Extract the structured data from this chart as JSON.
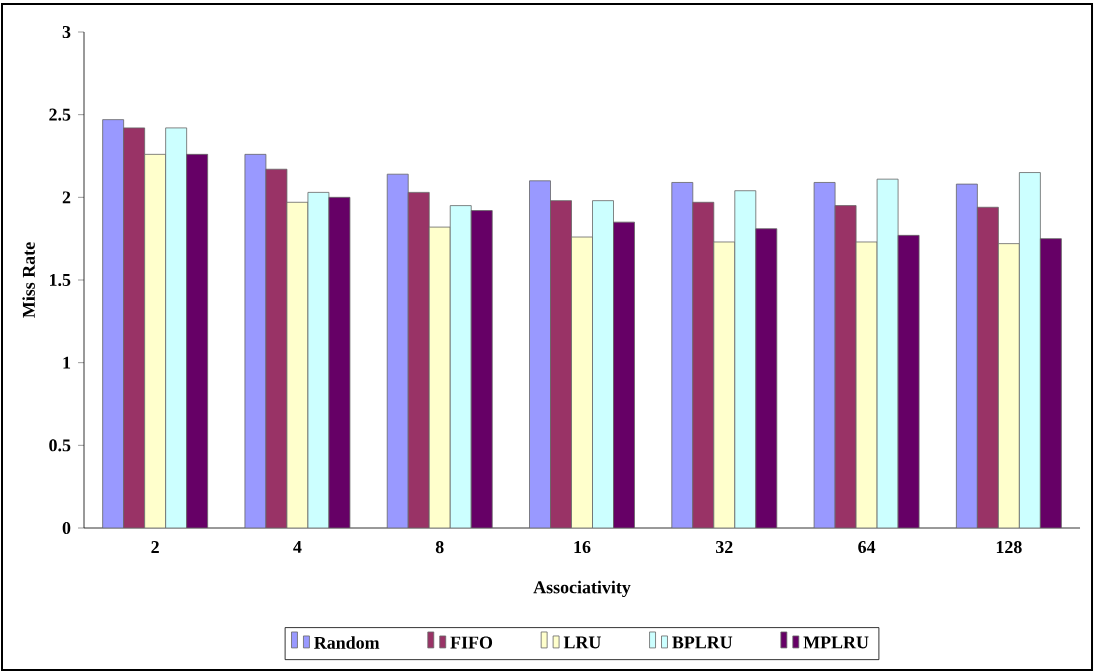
{
  "chart_data": {
    "type": "bar",
    "xlabel": "Associativity",
    "ylabel": "Miss Rate",
    "categories": [
      "2",
      "4",
      "8",
      "16",
      "32",
      "64",
      "128"
    ],
    "series": [
      {
        "name": "Random",
        "color": "#9999ff",
        "values": [
          2.47,
          2.26,
          2.14,
          2.1,
          2.09,
          2.09,
          2.08
        ]
      },
      {
        "name": "FIFO",
        "color": "#993366",
        "values": [
          2.42,
          2.17,
          2.03,
          1.98,
          1.97,
          1.95,
          1.94
        ]
      },
      {
        "name": "LRU",
        "color": "#ffffcc",
        "values": [
          2.26,
          1.97,
          1.82,
          1.76,
          1.73,
          1.73,
          1.72
        ]
      },
      {
        "name": "BPLRU",
        "color": "#ccffff",
        "values": [
          2.42,
          2.03,
          1.95,
          1.98,
          2.04,
          2.11,
          2.15
        ]
      },
      {
        "name": "MPLRU",
        "color": "#660066",
        "values": [
          2.26,
          2.0,
          1.92,
          1.85,
          1.81,
          1.77,
          1.75
        ]
      }
    ],
    "ylim": [
      0,
      3
    ],
    "yticks": [
      0,
      0.5,
      1,
      1.5,
      2,
      2.5,
      3
    ],
    "grid": false,
    "legend": "bottom"
  }
}
